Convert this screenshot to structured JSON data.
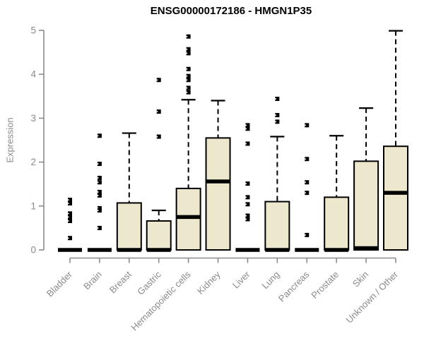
{
  "chart_data": {
    "type": "boxplot",
    "title": "ENSG00000172186 - HMGN1P35",
    "xlabel": "",
    "ylabel": "Expression",
    "ylim": [
      0,
      5
    ],
    "yticks": [
      "0",
      "1",
      "2",
      "3",
      "4",
      "5"
    ],
    "grid": false,
    "legend": false,
    "categories": [
      "Bladder",
      "Brain",
      "Breast",
      "Gastric",
      "Hematopoietic cells",
      "Kidney",
      "Liver",
      "Lung",
      "Pancreas",
      "Prostate",
      "Skin",
      "Unknown / Other"
    ],
    "boxes": [
      {
        "category": "Bladder",
        "q1": 0,
        "median": 0,
        "q3": 0,
        "whisker_low": 0,
        "whisker_high": 0,
        "outliers": [
          1.14,
          1.06,
          0.83,
          0.75,
          0.66,
          0.27
        ]
      },
      {
        "category": "Brain",
        "q1": 0,
        "median": 0,
        "q3": 0,
        "whisker_low": 0,
        "whisker_high": 0,
        "outliers": [
          2.6,
          1.96,
          1.64,
          1.54,
          1.32,
          1.24,
          0.95,
          0.9,
          0.5
        ]
      },
      {
        "category": "Breast",
        "q1": 0,
        "median": 0,
        "q3": 1.07,
        "whisker_low": 0,
        "whisker_high": 2.66,
        "outliers": []
      },
      {
        "category": "Gastric",
        "q1": 0,
        "median": 0,
        "q3": 0.66,
        "whisker_low": 0,
        "whisker_high": 0.9,
        "outliers": [
          3.87,
          3.15,
          2.58
        ]
      },
      {
        "category": "Hematopoietic cells",
        "q1": 0,
        "median": 0.75,
        "q3": 1.4,
        "whisker_low": 0,
        "whisker_high": 3.42,
        "outliers": [
          4.86,
          4.57,
          4.48,
          4.12,
          3.96,
          3.87,
          3.69,
          3.59
        ]
      },
      {
        "category": "Kidney",
        "q1": 0,
        "median": 1.56,
        "q3": 2.55,
        "whisker_low": 0,
        "whisker_high": 3.4,
        "outliers": []
      },
      {
        "category": "Liver",
        "q1": 0,
        "median": 0,
        "q3": 0,
        "whisker_low": 0,
        "whisker_high": 0,
        "outliers": [
          2.84,
          2.76,
          2.42,
          1.51,
          1.2,
          1.04,
          0.78,
          0.7
        ]
      },
      {
        "category": "Lung",
        "q1": 0,
        "median": 0,
        "q3": 1.1,
        "whisker_low": 0,
        "whisker_high": 2.58,
        "outliers": [
          3.44,
          3.07,
          2.92
        ]
      },
      {
        "category": "Pancreas",
        "q1": 0,
        "median": 0,
        "q3": 0,
        "whisker_low": 0,
        "whisker_high": 0,
        "outliers": [
          2.84,
          2.07,
          1.54,
          1.3,
          0.34
        ]
      },
      {
        "category": "Prostate",
        "q1": 0,
        "median": 0,
        "q3": 1.2,
        "whisker_low": 0,
        "whisker_high": 2.6,
        "outliers": []
      },
      {
        "category": "Skin",
        "q1": 0,
        "median": 0.04,
        "q3": 2.02,
        "whisker_low": 0,
        "whisker_high": 3.23,
        "outliers": []
      },
      {
        "category": "Unknown / Other",
        "q1": 0,
        "median": 1.3,
        "q3": 2.36,
        "whisker_low": 0,
        "whisker_high": 4.99,
        "outliers": []
      }
    ],
    "colors": {
      "box_fill": "#EDE7CD",
      "box_border": "#000000",
      "median": "#000000",
      "whisker": "#000000",
      "outlier": "#000000",
      "axis": "#8c8c8c",
      "tick_text": "#8a8a8a",
      "title_text": "#000000",
      "background": "#ffffff"
    }
  }
}
